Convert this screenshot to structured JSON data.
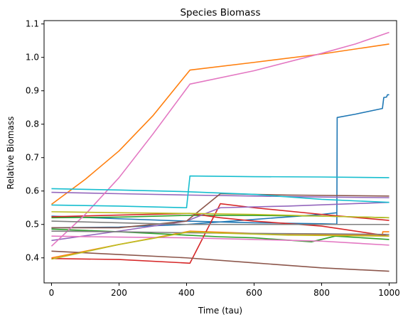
{
  "chart_data": {
    "type": "line",
    "title": "Species Biomass",
    "xlabel": "Time (tau)",
    "ylabel": "Relative Biomass",
    "xlim": [
      -22,
      1022
    ],
    "ylim": [
      0.325,
      1.11
    ],
    "xticks": [
      0,
      200,
      400,
      600,
      800,
      1000
    ],
    "yticks": [
      0.4,
      0.5,
      0.6,
      0.7,
      0.8,
      0.9,
      1.0,
      1.1
    ],
    "ytick_labels": [
      "0.4",
      "0.5",
      "0.6",
      "0.7",
      "0.8",
      "0.9",
      "1.0",
      "1.1"
    ],
    "grid": false,
    "series": [
      {
        "color": "#1f77b4",
        "points": [
          [
            0,
            0.525
          ],
          [
            200,
            0.517
          ],
          [
            400,
            0.51
          ],
          [
            600,
            0.505
          ],
          [
            800,
            0.502
          ],
          [
            845,
            0.501
          ],
          [
            846,
            0.82
          ],
          [
            900,
            0.83
          ],
          [
            980,
            0.847
          ],
          [
            984,
            0.88
          ],
          [
            992,
            0.881
          ],
          [
            995,
            0.888
          ],
          [
            1000,
            0.888
          ]
        ]
      },
      {
        "color": "#1f77b4",
        "points": [
          [
            0,
            0.49
          ],
          [
            200,
            0.492
          ],
          [
            400,
            0.5
          ],
          [
            600,
            0.515
          ],
          [
            800,
            0.53
          ],
          [
            845,
            0.535
          ]
        ]
      },
      {
        "color": "#ff7f0e",
        "points": [
          [
            0,
            0.56
          ],
          [
            100,
            0.635
          ],
          [
            200,
            0.72
          ],
          [
            300,
            0.825
          ],
          [
            410,
            0.962
          ],
          [
            600,
            0.985
          ],
          [
            800,
            1.01
          ],
          [
            1000,
            1.04
          ]
        ]
      },
      {
        "color": "#ff7f0e",
        "points": [
          [
            0,
            0.4
          ],
          [
            200,
            0.44
          ],
          [
            410,
            0.48
          ],
          [
            600,
            0.473
          ],
          [
            800,
            0.47
          ],
          [
            980,
            0.468
          ],
          [
            981,
            0.478
          ],
          [
            1000,
            0.478
          ]
        ]
      },
      {
        "color": "#2ca02c",
        "points": [
          [
            0,
            0.486
          ],
          [
            200,
            0.478
          ],
          [
            400,
            0.468
          ],
          [
            500,
            0.463
          ],
          [
            600,
            0.46
          ],
          [
            770,
            0.448
          ],
          [
            840,
            0.465
          ],
          [
            1000,
            0.455
          ]
        ]
      },
      {
        "color": "#2ca02c",
        "points": [
          [
            0,
            0.52
          ],
          [
            200,
            0.522
          ],
          [
            400,
            0.527
          ],
          [
            600,
            0.527
          ],
          [
            800,
            0.525
          ],
          [
            1000,
            0.52
          ]
        ]
      },
      {
        "color": "#d62728",
        "points": [
          [
            0,
            0.398
          ],
          [
            200,
            0.395
          ],
          [
            410,
            0.384
          ],
          [
            500,
            0.562
          ],
          [
            600,
            0.55
          ],
          [
            800,
            0.53
          ],
          [
            1000,
            0.512
          ]
        ]
      },
      {
        "color": "#d62728",
        "points": [
          [
            0,
            0.523
          ],
          [
            200,
            0.528
          ],
          [
            410,
            0.533
          ],
          [
            500,
            0.52
          ],
          [
            600,
            0.51
          ],
          [
            800,
            0.495
          ],
          [
            1000,
            0.465
          ]
        ]
      },
      {
        "color": "#9467bd",
        "points": [
          [
            0,
            0.596
          ],
          [
            200,
            0.592
          ],
          [
            400,
            0.588
          ],
          [
            600,
            0.585
          ],
          [
            800,
            0.582
          ],
          [
            1000,
            0.58
          ]
        ]
      },
      {
        "color": "#9467bd",
        "points": [
          [
            0,
            0.452
          ],
          [
            200,
            0.48
          ],
          [
            400,
            0.51
          ],
          [
            500,
            0.55
          ],
          [
            700,
            0.555
          ],
          [
            1000,
            0.566
          ]
        ]
      },
      {
        "color": "#8c564b",
        "points": [
          [
            0,
            0.42
          ],
          [
            200,
            0.41
          ],
          [
            400,
            0.4
          ],
          [
            600,
            0.385
          ],
          [
            800,
            0.37
          ],
          [
            1000,
            0.36
          ]
        ]
      },
      {
        "color": "#8c564b",
        "points": [
          [
            0,
            0.49
          ],
          [
            200,
            0.49
          ],
          [
            400,
            0.51
          ],
          [
            500,
            0.592
          ],
          [
            700,
            0.588
          ],
          [
            1000,
            0.585
          ]
        ]
      },
      {
        "color": "#e377c2",
        "points": [
          [
            0,
            0.435
          ],
          [
            100,
            0.53
          ],
          [
            200,
            0.64
          ],
          [
            300,
            0.77
          ],
          [
            410,
            0.92
          ],
          [
            600,
            0.96
          ],
          [
            800,
            1.012
          ],
          [
            900,
            1.04
          ],
          [
            1000,
            1.075
          ]
        ]
      },
      {
        "color": "#e377c2",
        "points": [
          [
            0,
            0.465
          ],
          [
            200,
            0.462
          ],
          [
            400,
            0.46
          ],
          [
            600,
            0.455
          ],
          [
            800,
            0.45
          ],
          [
            1000,
            0.438
          ]
        ]
      },
      {
        "color": "#7f7f7f",
        "points": [
          [
            0,
            0.51
          ],
          [
            200,
            0.505
          ],
          [
            400,
            0.5
          ],
          [
            600,
            0.5
          ],
          [
            800,
            0.5
          ],
          [
            1000,
            0.5
          ]
        ]
      },
      {
        "color": "#7f7f7f",
        "points": [
          [
            0,
            0.48
          ],
          [
            200,
            0.478
          ],
          [
            400,
            0.475
          ],
          [
            600,
            0.473
          ],
          [
            800,
            0.472
          ],
          [
            1000,
            0.47
          ]
        ]
      },
      {
        "color": "#bcbd22",
        "points": [
          [
            0,
            0.538
          ],
          [
            200,
            0.535
          ],
          [
            400,
            0.533
          ],
          [
            600,
            0.53
          ],
          [
            800,
            0.525
          ],
          [
            1000,
            0.52
          ]
        ]
      },
      {
        "color": "#bcbd22",
        "points": [
          [
            0,
            0.396
          ],
          [
            200,
            0.44
          ],
          [
            410,
            0.478
          ],
          [
            500,
            0.474
          ],
          [
            700,
            0.468
          ],
          [
            1000,
            0.465
          ]
        ]
      },
      {
        "color": "#17becf",
        "points": [
          [
            0,
            0.607
          ],
          [
            200,
            0.603
          ],
          [
            400,
            0.598
          ],
          [
            600,
            0.59
          ],
          [
            800,
            0.575
          ],
          [
            1000,
            0.566
          ]
        ]
      },
      {
        "color": "#17becf",
        "points": [
          [
            0,
            0.558
          ],
          [
            200,
            0.555
          ],
          [
            400,
            0.55
          ],
          [
            410,
            0.645
          ],
          [
            600,
            0.643
          ],
          [
            800,
            0.642
          ],
          [
            1000,
            0.64
          ]
        ]
      }
    ]
  }
}
